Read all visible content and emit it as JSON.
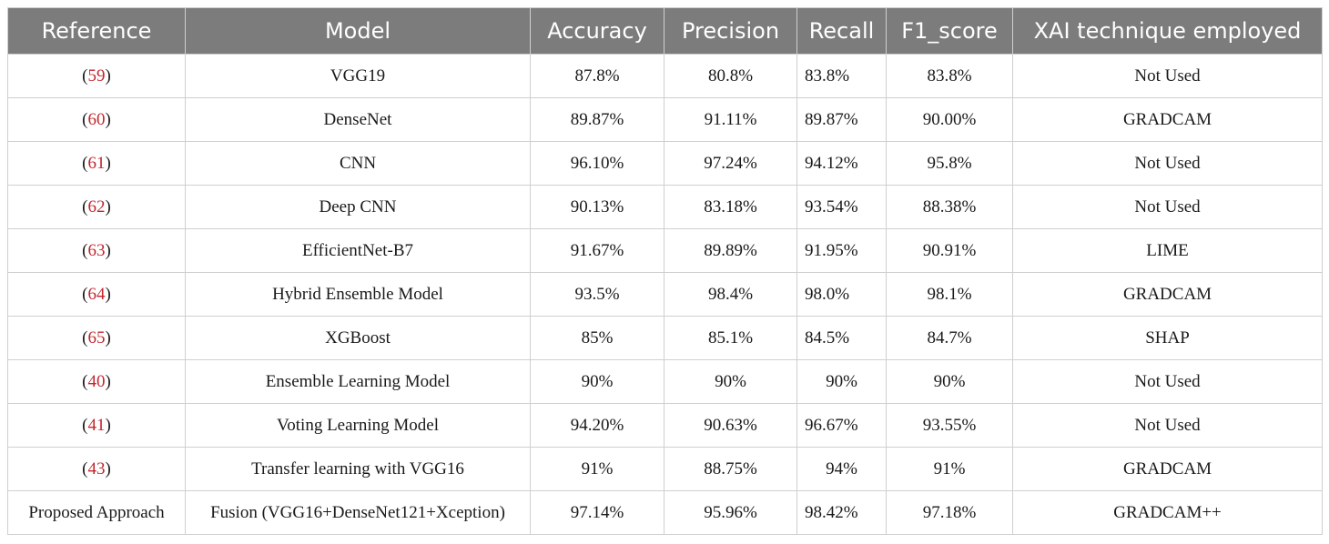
{
  "colors": {
    "header_bg": "#7b7c7b",
    "header_text": "#ffffff",
    "ref_link": "#c0272d",
    "grid": "#cfcfcf"
  },
  "headers": [
    "Reference",
    "Model",
    "Accuracy",
    "Precision",
    "Recall",
    "F1_score",
    "XAI technique employed"
  ],
  "rows": [
    {
      "ref": "59",
      "model": "VGG19",
      "accuracy": "87.8%",
      "precision": "80.8%",
      "recall": "83.8%",
      "f1": "83.8%",
      "xai": "Not Used"
    },
    {
      "ref": "60",
      "model": "DenseNet",
      "accuracy": "89.87%",
      "precision": "91.11%",
      "recall": "89.87%",
      "f1": "90.00%",
      "xai": "GRADCAM"
    },
    {
      "ref": "61",
      "model": "CNN",
      "accuracy": "96.10%",
      "precision": "97.24%",
      "recall": "94.12%",
      "f1": "95.8%",
      "xai": "Not Used"
    },
    {
      "ref": "62",
      "model": "Deep CNN",
      "accuracy": "90.13%",
      "precision": "83.18%",
      "recall": "93.54%",
      "f1": "88.38%",
      "xai": "Not Used"
    },
    {
      "ref": "63",
      "model": "EfficientNet-B7",
      "accuracy": "91.67%",
      "precision": "89.89%",
      "recall": "91.95%",
      "f1": "90.91%",
      "xai": "LIME"
    },
    {
      "ref": "64",
      "model": "Hybrid Ensemble Model",
      "accuracy": "93.5%",
      "precision": "98.4%",
      "recall": "98.0%",
      "f1": "98.1%",
      "xai": "GRADCAM"
    },
    {
      "ref": "65",
      "model": "XGBoost",
      "accuracy": "85%",
      "precision": "85.1%",
      "recall": "84.5%",
      "f1": "84.7%",
      "xai": "SHAP"
    },
    {
      "ref": "40",
      "model": "Ensemble Learning Model",
      "accuracy": "90%",
      "precision": "90%",
      "recall": "90%",
      "f1": "90%",
      "xai": "Not Used"
    },
    {
      "ref": "41",
      "model": "Voting Learning Model",
      "accuracy": "94.20%",
      "precision": "90.63%",
      "recall": "96.67%",
      "f1": "93.55%",
      "xai": "Not Used"
    },
    {
      "ref": "43",
      "model": "Transfer learning with VGG16",
      "accuracy": "91%",
      "precision": "88.75%",
      "recall": "94%",
      "f1": "91%",
      "xai": "GRADCAM"
    }
  ],
  "proposed": {
    "ref_text": "Proposed Approach",
    "model": "Fusion (VGG16+DenseNet121+Xception)",
    "accuracy": "97.14%",
    "precision": "95.96%",
    "recall": "98.42%",
    "f1": "97.18%",
    "xai": "GRADCAM++"
  }
}
